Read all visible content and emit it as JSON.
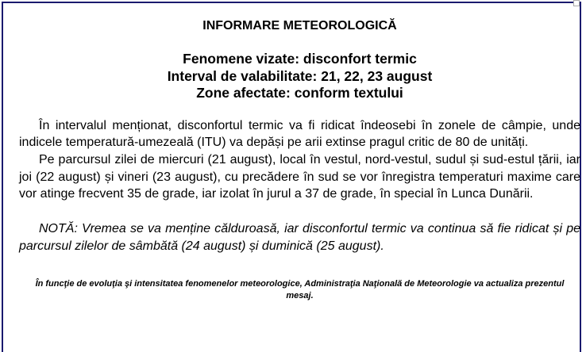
{
  "title": "INFORMARE METEOROLOGICĂ",
  "headings": [
    "Fenomene vizate: disconfort termic",
    "Interval de valabilitate: 21, 22, 23 august",
    "Zone afectate: conform textului"
  ],
  "paragraphs": [
    "În intervalul menționat, disconfortul termic va fi ridicat îndeosebi în zonele de câmpie, unde indicele temperatură-umezeală (ITU) va depăși pe arii extinse pragul critic de 80 de unități.",
    "Pe parcursul zilei de miercuri (21 august), local în vestul, nord-vestul, sudul și sud-estul țării, iar joi (22 august) și vineri (23 august), cu precădere în sud se vor înregistra temperaturi maxime care vor atinge frecvent 35 de grade, iar izolat în jurul a 37 de grade, în special în Lunca Dunării."
  ],
  "note": "NOTĂ: Vremea se va menține călduroasă, iar disconfortul termic va continua să fie ridicat și pe parcursul zilelor de sâmbătă (24 august) și duminică (25 august).",
  "footer": "În funcţie de evoluţia şi intensitatea fenomenelor meteorologice, Administraţia Naţională de Meteorologie va actualiza prezentul mesaj."
}
